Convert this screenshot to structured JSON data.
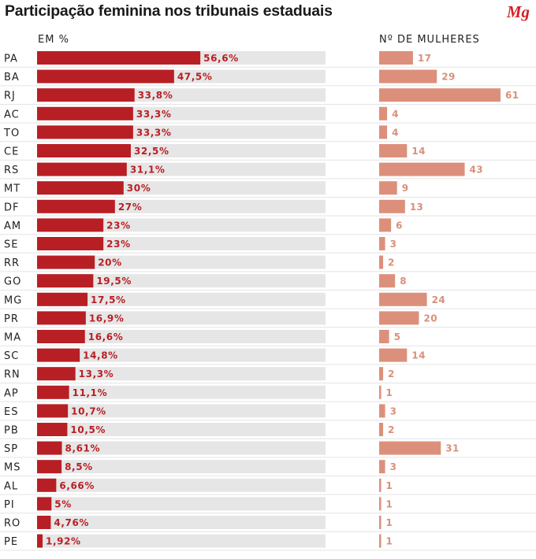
{
  "title": "Participação feminina nos tribunais estaduais",
  "logo": "Mg",
  "chart_data": {
    "type": "bar",
    "orientation": "horizontal",
    "title": "Participação feminina nos tribunais estaduais",
    "series": [
      {
        "name": "EM %",
        "color": "#b81f24",
        "track_color": "#e6e6e6",
        "xlim": [
          0,
          100
        ],
        "values": [
          56.6,
          47.5,
          33.8,
          33.3,
          33.3,
          32.5,
          31.1,
          30,
          27,
          23,
          23,
          20,
          19.5,
          17.5,
          16.9,
          16.6,
          14.8,
          13.3,
          11.1,
          10.7,
          10.5,
          8.61,
          8.5,
          6.66,
          5,
          4.76,
          1.92
        ],
        "labels": [
          "56,6%",
          "47,5%",
          "33,8%",
          "33,3%",
          "33,3%",
          "32,5%",
          "31,1%",
          "30%",
          "27%",
          "23%",
          "23%",
          "20%",
          "19,5%",
          "17,5%",
          "16,9%",
          "16,6%",
          "14,8%",
          "13,3%",
          "11,1%",
          "10,7%",
          "10,5%",
          "8,61%",
          "8,5%",
          "6,66%",
          "5%",
          "4,76%",
          "1,92%"
        ]
      },
      {
        "name": "Nº DE MULHERES",
        "color": "#dc907b",
        "xlim": [
          0,
          61
        ],
        "values": [
          17,
          29,
          61,
          4,
          4,
          14,
          43,
          9,
          13,
          6,
          3,
          2,
          8,
          24,
          20,
          5,
          14,
          2,
          1,
          3,
          2,
          31,
          3,
          1,
          1,
          1,
          1
        ],
        "labels": [
          "17",
          "29",
          "61",
          "4",
          "4",
          "14",
          "43",
          "9",
          "13",
          "6",
          "3",
          "2",
          "8",
          "24",
          "20",
          "5",
          "14",
          "2",
          "1",
          "3",
          "2",
          "31",
          "3",
          "1",
          "1",
          "1",
          "1"
        ]
      }
    ],
    "categories": [
      "PA",
      "BA",
      "RJ",
      "AC",
      "TO",
      "CE",
      "RS",
      "MT",
      "DF",
      "AM",
      "SE",
      "RR",
      "GO",
      "MG",
      "PR",
      "MA",
      "SC",
      "RN",
      "AP",
      "ES",
      "PB",
      "SP",
      "MS",
      "AL",
      "PI",
      "RO",
      "PE"
    ],
    "grid": false,
    "legend": "none"
  }
}
